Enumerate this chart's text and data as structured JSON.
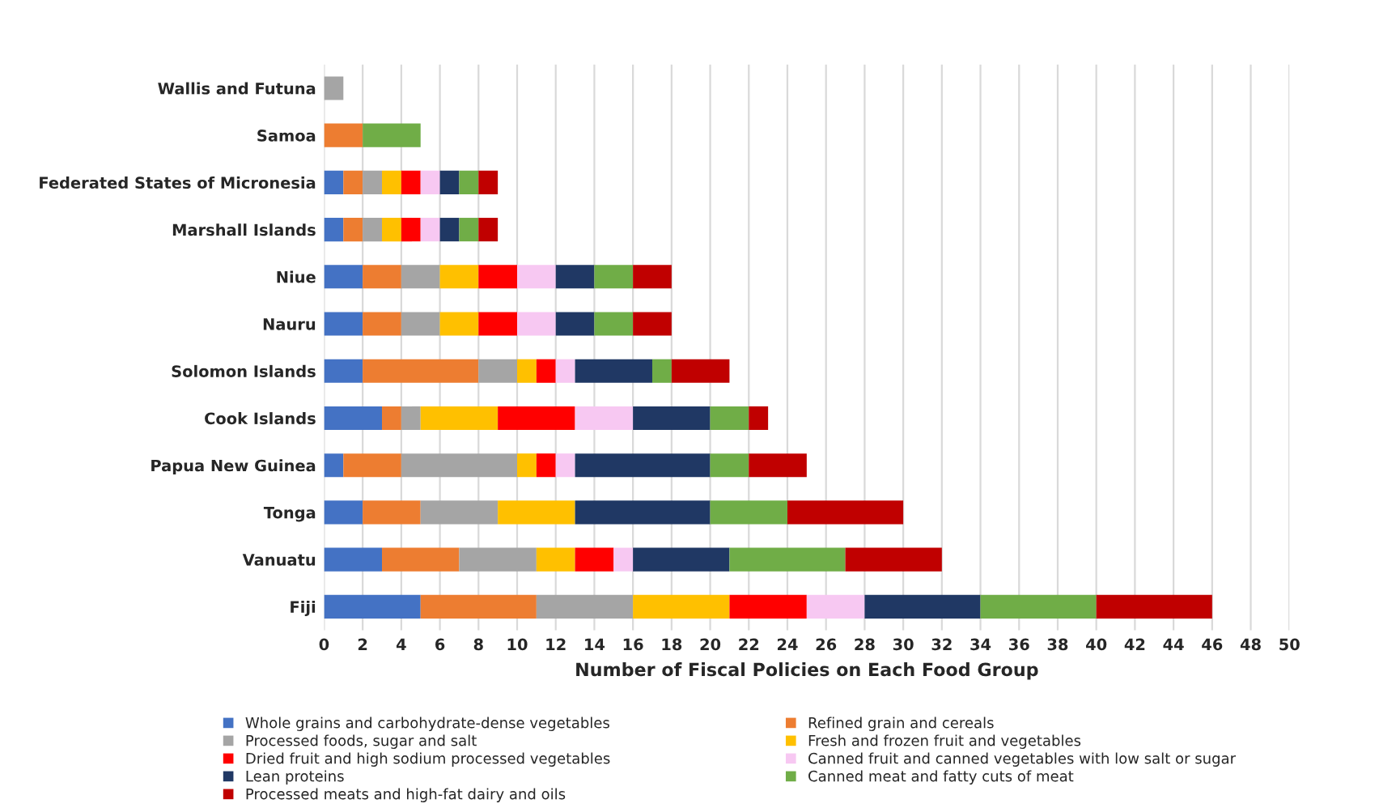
{
  "chart_data": {
    "type": "bar",
    "orientation": "horizontal",
    "stacked": true,
    "xlabel": "Number of Fiscal Policies on Each Food Group",
    "categories": [
      "Wallis and Futuna",
      "Samoa",
      "Federated States of Micronesia",
      "Marshall Islands",
      "Niue",
      "Nauru",
      "Solomon Islands",
      "Cook Islands",
      "Papua New Guinea",
      "Tonga",
      "Vanuatu",
      "Fiji"
    ],
    "series": [
      {
        "name": "Whole grains and carbohydrate-dense vegetables",
        "color": "#4472c4",
        "values": [
          0,
          0,
          1,
          1,
          2,
          2,
          2,
          3,
          1,
          2,
          3,
          5
        ]
      },
      {
        "name": "Refined grain and cereals",
        "color": "#ed7d31",
        "values": [
          0,
          2,
          1,
          1,
          2,
          2,
          6,
          1,
          3,
          3,
          4,
          6
        ]
      },
      {
        "name": "Processed foods, sugar and salt",
        "color": "#a5a5a5",
        "values": [
          1,
          0,
          1,
          1,
          2,
          2,
          2,
          1,
          6,
          4,
          4,
          5
        ]
      },
      {
        "name": "Fresh and frozen fruit and vegetables",
        "color": "#ffc000",
        "values": [
          0,
          0,
          1,
          1,
          2,
          2,
          1,
          4,
          1,
          4,
          2,
          5
        ]
      },
      {
        "name": "Dried fruit and high sodium processed vegetables",
        "color": "#ff0000",
        "values": [
          0,
          0,
          1,
          1,
          2,
          2,
          1,
          4,
          1,
          0,
          2,
          4
        ]
      },
      {
        "name": "Canned fruit and canned vegetables with low salt or sugar",
        "color": "#f7c8f2",
        "values": [
          0,
          0,
          1,
          1,
          2,
          2,
          1,
          3,
          1,
          0,
          1,
          3
        ]
      },
      {
        "name": "Lean proteins",
        "color": "#203864",
        "values": [
          0,
          0,
          1,
          1,
          2,
          2,
          4,
          4,
          7,
          7,
          5,
          6
        ]
      },
      {
        "name": "Canned meat and fatty cuts of meat",
        "color": "#70ad47",
        "values": [
          0,
          3,
          1,
          1,
          2,
          2,
          1,
          2,
          2,
          4,
          6,
          6
        ]
      },
      {
        "name": "Processed meats and high-fat dairy and oils",
        "color": "#c00000",
        "values": [
          0,
          0,
          1,
          1,
          2,
          2,
          3,
          1,
          3,
          6,
          5,
          6
        ]
      }
    ],
    "xlim": [
      0,
      50
    ],
    "xticks": [
      0,
      2,
      4,
      6,
      8,
      10,
      12,
      14,
      16,
      18,
      20,
      22,
      24,
      26,
      28,
      30,
      32,
      34,
      36,
      38,
      40,
      42,
      44,
      46,
      48,
      50
    ],
    "grid": "x",
    "legend": "bottom"
  }
}
